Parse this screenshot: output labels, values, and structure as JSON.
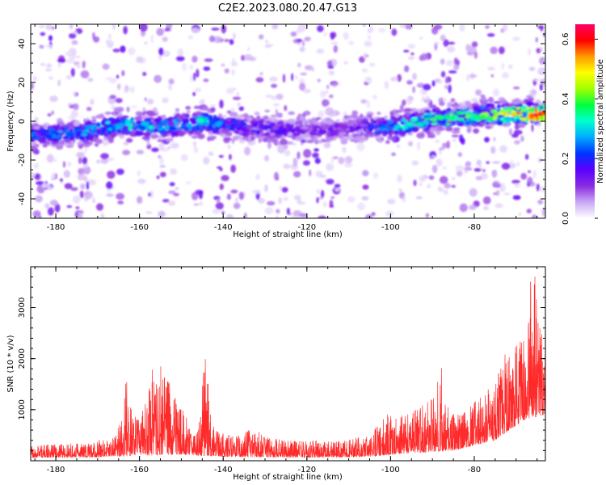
{
  "title": "C2E2.2023.080.20.47.G13",
  "chart_data": [
    {
      "type": "heatmap",
      "title": "C2E2.2023.080.20.47.G13",
      "xlabel": "Height of straight line (km)",
      "ylabel": "Frequency (Hz)",
      "xlim": [
        -186,
        -63
      ],
      "ylim": [
        -50,
        50
      ],
      "xticks": [
        "-180",
        "-160",
        "-140",
        "-120",
        "-100",
        "-80"
      ],
      "yticks": [
        "-40",
        "-20",
        "0",
        "20",
        "40"
      ],
      "colorbar": {
        "label": "Normalized spectral amplitude",
        "range": [
          0.0,
          0.65
        ],
        "ticks": [
          "0.0",
          "0.2",
          "0.4",
          "0.6"
        ],
        "colors": [
          "#ffffff",
          "#c9a7f5",
          "#8a2be2",
          "#5a00ff",
          "#0033ff",
          "#00aaff",
          "#00ffd0",
          "#00ff40",
          "#a0ff00",
          "#ffff00",
          "#ff9900",
          "#ff0000",
          "#ff0066"
        ]
      },
      "band": {
        "center_freq_hz": [
          [
            -183,
            -7
          ],
          [
            -175,
            -6
          ],
          [
            -165,
            -2
          ],
          [
            -155,
            -3
          ],
          [
            -145,
            0
          ],
          [
            -140,
            -2
          ],
          [
            -130,
            -4
          ],
          [
            -120,
            -5
          ],
          [
            -110,
            -4
          ],
          [
            -100,
            -3
          ],
          [
            -90,
            1
          ],
          [
            -80,
            3
          ],
          [
            -70,
            4
          ],
          [
            -65,
            4
          ]
        ],
        "peak_amplitude": [
          [
            -183,
            0.25
          ],
          [
            -175,
            0.3
          ],
          [
            -165,
            0.32
          ],
          [
            -160,
            0.35
          ],
          [
            -155,
            0.3
          ],
          [
            -145,
            0.35
          ],
          [
            -140,
            0.25
          ],
          [
            -130,
            0.2
          ],
          [
            -120,
            0.15
          ],
          [
            -110,
            0.15
          ],
          [
            -100,
            0.3
          ],
          [
            -90,
            0.4
          ],
          [
            -80,
            0.42
          ],
          [
            -70,
            0.55
          ],
          [
            -65,
            0.62
          ]
        ]
      },
      "background_noise_gaps_km": [
        [
          -163,
          -160
        ],
        [
          -150,
          -147
        ],
        [
          -110,
          -107
        ],
        [
          -104,
          -101
        ]
      ]
    },
    {
      "type": "line",
      "xlabel": "Height of straight line (km)",
      "ylabel": "SNR (10 * v/v)",
      "xlim": [
        -186,
        -63
      ],
      "ylim": [
        0,
        3800
      ],
      "xticks": [
        "-180",
        "-160",
        "-140",
        "-120",
        "-100",
        "-80"
      ],
      "yticks": [
        "1000",
        "2000",
        "3000"
      ],
      "color": "#ff2a2a",
      "series": [
        {
          "envelope": [
            [
              -186,
              300
            ],
            [
              -182,
              320
            ],
            [
              -178,
              330
            ],
            [
              -174,
              360
            ],
            [
              -170,
              400
            ],
            [
              -168,
              450
            ],
            [
              -166,
              520
            ],
            [
              -164,
              900
            ],
            [
              -163,
              1850
            ],
            [
              -162,
              1100
            ],
            [
              -160,
              800
            ],
            [
              -158,
              1300
            ],
            [
              -157,
              1900
            ],
            [
              -156,
              1500
            ],
            [
              -155,
              1950
            ],
            [
              -154,
              1700
            ],
            [
              -153,
              1600
            ],
            [
              -152,
              1400
            ],
            [
              -150,
              1100
            ],
            [
              -148,
              700
            ],
            [
              -146,
              650
            ],
            [
              -145,
              1500
            ],
            [
              -144.5,
              2650
            ],
            [
              -144,
              1900
            ],
            [
              -143,
              1000
            ],
            [
              -141,
              550
            ],
            [
              -138,
              500
            ],
            [
              -135,
              600
            ],
            [
              -132,
              620
            ],
            [
              -130,
              500
            ],
            [
              -125,
              420
            ],
            [
              -120,
              400
            ],
            [
              -115,
              400
            ],
            [
              -110,
              430
            ],
            [
              -106,
              480
            ],
            [
              -103,
              750
            ],
            [
              -101,
              950
            ],
            [
              -99,
              850
            ],
            [
              -97,
              900
            ],
            [
              -95,
              1050
            ],
            [
              -93,
              1100
            ],
            [
              -91,
              1150
            ],
            [
              -90,
              1300
            ],
            [
              -89,
              1600
            ],
            [
              -88,
              1950
            ],
            [
              -87,
              1400
            ],
            [
              -85,
              1000
            ],
            [
              -83,
              950
            ],
            [
              -81,
              1100
            ],
            [
              -79,
              1250
            ],
            [
              -77,
              1400
            ],
            [
              -75,
              1700
            ],
            [
              -74,
              1900
            ],
            [
              -73,
              2150
            ],
            [
              -72,
              2450
            ],
            [
              -71,
              2300
            ],
            [
              -70,
              2600
            ],
            [
              -69,
              2500
            ],
            [
              -68,
              2800
            ],
            [
              -67,
              3100
            ],
            [
              -66.5,
              3750
            ],
            [
              -66,
              3300
            ],
            [
              -65.5,
              3800
            ],
            [
              -65,
              3100
            ],
            [
              -64,
              2700
            ],
            [
              -63,
              2200
            ]
          ],
          "floor": [
            [
              -186,
              60
            ],
            [
              -170,
              70
            ],
            [
              -160,
              100
            ],
            [
              -150,
              120
            ],
            [
              -140,
              80
            ],
            [
              -120,
              60
            ],
            [
              -105,
              80
            ],
            [
              -95,
              150
            ],
            [
              -85,
              200
            ],
            [
              -75,
              400
            ],
            [
              -68,
              800
            ],
            [
              -63,
              900
            ]
          ]
        }
      ]
    }
  ]
}
